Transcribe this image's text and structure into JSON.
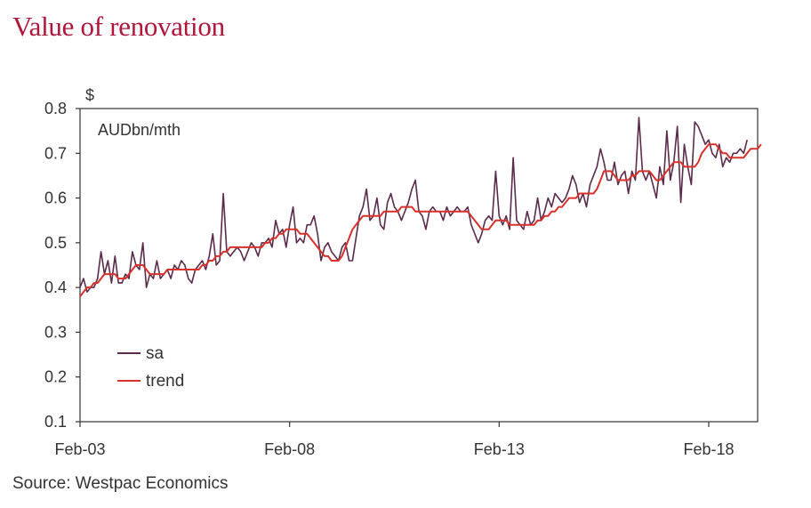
{
  "title": "Value of renovation",
  "source": "Source: Westpac Economics",
  "colors": {
    "title": "#b0153a",
    "sa": "#5a2b4a",
    "trend": "#d8302a",
    "axis": "#333333"
  },
  "chart_data": {
    "type": "line",
    "title": "Value of renovation",
    "ylabel_top": "$",
    "unit_label": "AUDbn/mth",
    "ylim": [
      0.1,
      0.8
    ],
    "yticks": [
      "0.1",
      "0.2",
      "0.3",
      "0.4",
      "0.5",
      "0.6",
      "0.7",
      "0.8"
    ],
    "xlim": [
      2003.083,
      2019.25
    ],
    "xticks": [
      {
        "label": "Feb-03",
        "value": 2003.083
      },
      {
        "label": "Feb-08",
        "value": 2008.083
      },
      {
        "label": "Feb-13",
        "value": 2013.083
      },
      {
        "label": "Feb-18",
        "value": 2018.083
      }
    ],
    "grid": false,
    "legend_position": "bottom-left",
    "series": [
      {
        "name": "sa",
        "color": "#5a2b4a",
        "x_start": "2003-02",
        "frequency": "monthly",
        "values": [
          0.4,
          0.42,
          0.39,
          0.4,
          0.4,
          0.42,
          0.48,
          0.43,
          0.46,
          0.41,
          0.47,
          0.41,
          0.41,
          0.43,
          0.42,
          0.48,
          0.45,
          0.44,
          0.5,
          0.4,
          0.43,
          0.42,
          0.46,
          0.42,
          0.43,
          0.44,
          0.42,
          0.45,
          0.44,
          0.46,
          0.45,
          0.42,
          0.41,
          0.44,
          0.45,
          0.46,
          0.44,
          0.47,
          0.52,
          0.45,
          0.46,
          0.61,
          0.48,
          0.47,
          0.48,
          0.49,
          0.48,
          0.46,
          0.48,
          0.5,
          0.49,
          0.47,
          0.5,
          0.5,
          0.51,
          0.49,
          0.55,
          0.52,
          0.53,
          0.49,
          0.54,
          0.58,
          0.5,
          0.51,
          0.5,
          0.54,
          0.54,
          0.56,
          0.52,
          0.46,
          0.49,
          0.5,
          0.48,
          0.47,
          0.46,
          0.49,
          0.5,
          0.46,
          0.46,
          0.51,
          0.56,
          0.58,
          0.62,
          0.55,
          0.56,
          0.6,
          0.54,
          0.53,
          0.59,
          0.61,
          0.58,
          0.57,
          0.55,
          0.57,
          0.59,
          0.62,
          0.64,
          0.57,
          0.56,
          0.53,
          0.57,
          0.58,
          0.57,
          0.57,
          0.55,
          0.58,
          0.56,
          0.57,
          0.58,
          0.57,
          0.57,
          0.58,
          0.54,
          0.52,
          0.5,
          0.52,
          0.55,
          0.56,
          0.55,
          0.66,
          0.56,
          0.54,
          0.56,
          0.53,
          0.69,
          0.55,
          0.54,
          0.53,
          0.57,
          0.54,
          0.55,
          0.6,
          0.55,
          0.57,
          0.6,
          0.58,
          0.61,
          0.6,
          0.59,
          0.6,
          0.62,
          0.65,
          0.63,
          0.59,
          0.61,
          0.58,
          0.63,
          0.65,
          0.67,
          0.71,
          0.68,
          0.64,
          0.64,
          0.68,
          0.63,
          0.65,
          0.66,
          0.61,
          0.66,
          0.64,
          0.78,
          0.66,
          0.64,
          0.66,
          0.63,
          0.6,
          0.67,
          0.63,
          0.75,
          0.64,
          0.68,
          0.76,
          0.59,
          0.72,
          0.67,
          0.63,
          0.77,
          0.76,
          0.74,
          0.72,
          0.73,
          0.7,
          0.69,
          0.72,
          0.67,
          0.69,
          0.68,
          0.7,
          0.7,
          0.71,
          0.7,
          0.73
        ]
      },
      {
        "name": "trend",
        "color": "#d8302a",
        "x_start": "2003-02",
        "frequency": "monthly",
        "values": [
          0.38,
          0.39,
          0.4,
          0.4,
          0.41,
          0.41,
          0.42,
          0.43,
          0.43,
          0.43,
          0.43,
          0.42,
          0.42,
          0.42,
          0.43,
          0.44,
          0.45,
          0.45,
          0.45,
          0.44,
          0.43,
          0.43,
          0.43,
          0.43,
          0.43,
          0.44,
          0.44,
          0.44,
          0.44,
          0.44,
          0.44,
          0.44,
          0.44,
          0.44,
          0.44,
          0.45,
          0.45,
          0.46,
          0.46,
          0.47,
          0.47,
          0.48,
          0.48,
          0.49,
          0.49,
          0.49,
          0.49,
          0.49,
          0.49,
          0.49,
          0.49,
          0.49,
          0.49,
          0.5,
          0.5,
          0.51,
          0.51,
          0.52,
          0.52,
          0.53,
          0.53,
          0.53,
          0.53,
          0.52,
          0.52,
          0.52,
          0.51,
          0.5,
          0.49,
          0.48,
          0.47,
          0.47,
          0.46,
          0.46,
          0.46,
          0.47,
          0.49,
          0.51,
          0.53,
          0.54,
          0.55,
          0.56,
          0.56,
          0.56,
          0.56,
          0.56,
          0.56,
          0.57,
          0.57,
          0.57,
          0.57,
          0.57,
          0.58,
          0.58,
          0.58,
          0.58,
          0.57,
          0.57,
          0.57,
          0.57,
          0.57,
          0.57,
          0.57,
          0.57,
          0.57,
          0.57,
          0.57,
          0.57,
          0.57,
          0.57,
          0.57,
          0.57,
          0.56,
          0.55,
          0.54,
          0.53,
          0.53,
          0.53,
          0.54,
          0.55,
          0.55,
          0.55,
          0.55,
          0.54,
          0.54,
          0.54,
          0.54,
          0.54,
          0.54,
          0.54,
          0.54,
          0.55,
          0.55,
          0.56,
          0.56,
          0.57,
          0.57,
          0.58,
          0.58,
          0.59,
          0.6,
          0.6,
          0.6,
          0.61,
          0.61,
          0.61,
          0.61,
          0.61,
          0.62,
          0.64,
          0.66,
          0.66,
          0.66,
          0.65,
          0.64,
          0.64,
          0.64,
          0.64,
          0.65,
          0.65,
          0.66,
          0.66,
          0.66,
          0.66,
          0.65,
          0.64,
          0.64,
          0.65,
          0.66,
          0.67,
          0.68,
          0.68,
          0.68,
          0.67,
          0.67,
          0.67,
          0.67,
          0.68,
          0.7,
          0.71,
          0.72,
          0.72,
          0.72,
          0.71,
          0.7,
          0.7,
          0.69,
          0.69,
          0.69,
          0.69,
          0.69,
          0.7,
          0.71,
          0.71,
          0.71,
          0.72
        ]
      }
    ]
  }
}
